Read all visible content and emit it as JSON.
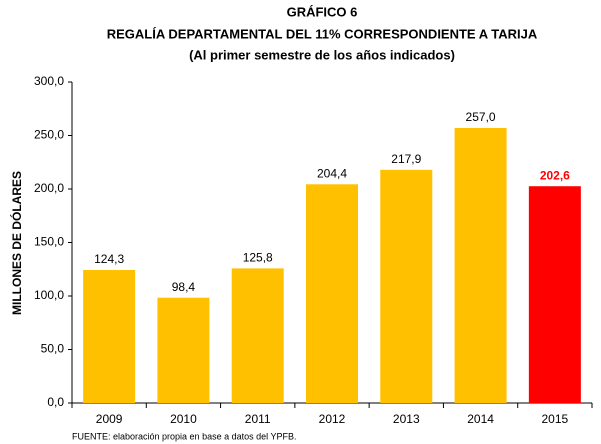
{
  "chart_data": {
    "type": "bar",
    "title": [
      "GRÁFICO 6",
      "REGALÍA DEPARTAMENTAL DEL 11% CORRESPONDIENTE A TARIJA",
      "(Al primer semestre de los años indicados)"
    ],
    "y_label": "MILLONES DE DÓLARES",
    "source": "FUENTE: elaboración propia en base a datos del YPFB.",
    "categories": [
      "2009",
      "2010",
      "2011",
      "2012",
      "2013",
      "2014",
      "2015"
    ],
    "values": [
      124.3,
      98.4,
      125.8,
      204.4,
      217.9,
      257.0,
      202.6
    ],
    "value_labels": [
      "124,3",
      "98,4",
      "125,8",
      "204,4",
      "217,9",
      "257,0",
      "202,6"
    ],
    "colors": [
      "#ffc000",
      "#ffc000",
      "#ffc000",
      "#ffc000",
      "#ffc000",
      "#ffc000",
      "#ff0000"
    ],
    "label_colors": [
      "#000000",
      "#000000",
      "#000000",
      "#000000",
      "#000000",
      "#000000",
      "#ff0000"
    ],
    "ylim": [
      0,
      300
    ],
    "yticks": [
      {
        "value": 0,
        "label": "0,0"
      },
      {
        "value": 50,
        "label": "50,0"
      },
      {
        "value": 100,
        "label": "100,0"
      },
      {
        "value": 150,
        "label": "150,0"
      },
      {
        "value": 200,
        "label": "200,0"
      },
      {
        "value": 250,
        "label": "250,0"
      },
      {
        "value": 300,
        "label": "300,0"
      }
    ],
    "grid": false
  }
}
